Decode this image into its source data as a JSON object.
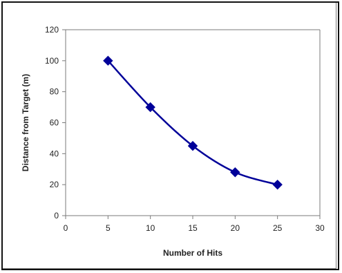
{
  "chart_data": {
    "type": "line",
    "title": "",
    "xlabel": "Number of Hits",
    "ylabel": "Distance from Target (m)",
    "xlim": [
      0,
      30
    ],
    "ylim": [
      0,
      120
    ],
    "x_ticks": [
      0,
      5,
      10,
      15,
      20,
      25,
      30
    ],
    "y_ticks": [
      0,
      20,
      40,
      60,
      80,
      100,
      120
    ],
    "grid": false,
    "legend": "none",
    "marker": "diamond",
    "smoothed": true,
    "series": [
      {
        "x": [
          5,
          10,
          15,
          20,
          25
        ],
        "values": [
          100,
          70,
          45,
          28,
          20
        ],
        "color": "#000099"
      }
    ]
  }
}
